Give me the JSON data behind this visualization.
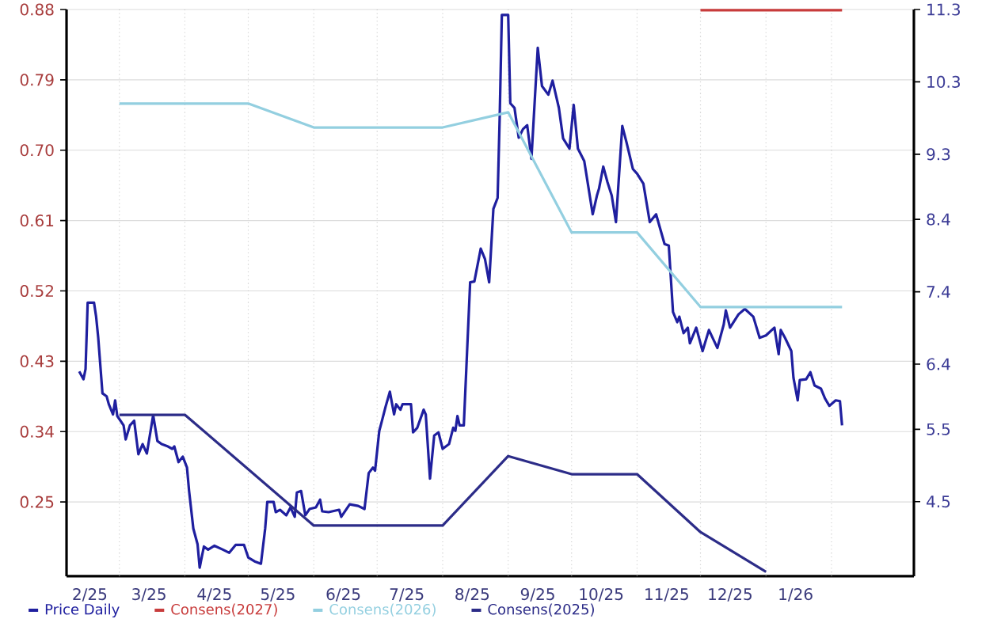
{
  "chart_data": {
    "type": "line",
    "series": [
      {
        "name": "Price Daily",
        "color": "#1f1f9f",
        "x": [
          "2025-02-10",
          "2025-02-12",
          "2025-02-13",
          "2025-02-14",
          "2025-02-17",
          "2025-02-18",
          "2025-02-19",
          "2025-02-21",
          "2025-02-23",
          "2025-02-24",
          "2025-02-26",
          "2025-02-27",
          "2025-02-28",
          "2025-03-03",
          "2025-03-04",
          "2025-03-06",
          "2025-03-08",
          "2025-03-10",
          "2025-03-12",
          "2025-03-14",
          "2025-03-17",
          "2025-03-19",
          "2025-03-21",
          "2025-03-24",
          "2025-03-26",
          "2025-03-27",
          "2025-03-29",
          "2025-03-31",
          "2025-04-02",
          "2025-04-03",
          "2025-04-05",
          "2025-04-07",
          "2025-04-08",
          "2025-04-10",
          "2025-04-12",
          "2025-04-15",
          "2025-04-19",
          "2025-04-22",
          "2025-04-25",
          "2025-04-29",
          "2025-05-01",
          "2025-05-04",
          "2025-05-07",
          "2025-05-09",
          "2025-05-10",
          "2025-05-13",
          "2025-05-14",
          "2025-05-16",
          "2025-05-19",
          "2025-05-21",
          "2025-05-23",
          "2025-05-24",
          "2025-05-26",
          "2025-05-28",
          "2025-05-30",
          "2025-06-02",
          "2025-06-04",
          "2025-06-05",
          "2025-06-08",
          "2025-06-13",
          "2025-06-14",
          "2025-06-18",
          "2025-06-22",
          "2025-06-25",
          "2025-06-27",
          "2025-06-29",
          "2025-06-30",
          "2025-07-02",
          "2025-07-03",
          "2025-07-05",
          "2025-07-07",
          "2025-07-09",
          "2025-07-10",
          "2025-07-12",
          "2025-07-13",
          "2025-07-17",
          "2025-07-18",
          "2025-07-20",
          "2025-07-23",
          "2025-07-24",
          "2025-07-26",
          "2025-07-28",
          "2025-07-30",
          "2025-08-01",
          "2025-08-04",
          "2025-08-06",
          "2025-08-07",
          "2025-08-08",
          "2025-08-09",
          "2025-08-11",
          "2025-08-14",
          "2025-08-16",
          "2025-08-19",
          "2025-08-21",
          "2025-08-23",
          "2025-08-25",
          "2025-08-27",
          "2025-08-28",
          "2025-08-29",
          "2025-09-01",
          "2025-09-02",
          "2025-09-04",
          "2025-09-06",
          "2025-09-08",
          "2025-09-10",
          "2025-09-12",
          "2025-09-15",
          "2025-09-17",
          "2025-09-20",
          "2025-09-22",
          "2025-09-25",
          "2025-09-27",
          "2025-09-30",
          "2025-10-02",
          "2025-10-04",
          "2025-10-07",
          "2025-10-08",
          "2025-10-11",
          "2025-10-13",
          "2025-10-14",
          "2025-10-16",
          "2025-10-18",
          "2025-10-20",
          "2025-10-22",
          "2025-10-25",
          "2025-10-27",
          "2025-10-30",
          "2025-11-01",
          "2025-11-04",
          "2025-11-07",
          "2025-11-10",
          "2025-11-14",
          "2025-11-16",
          "2025-11-18",
          "2025-11-20",
          "2025-11-21",
          "2025-11-23",
          "2025-11-25",
          "2025-11-26",
          "2025-11-29",
          "2025-12-02",
          "2025-12-05",
          "2025-12-09",
          "2025-12-12",
          "2025-12-13",
          "2025-12-15",
          "2025-12-19",
          "2025-12-22",
          "2025-12-26",
          "2025-12-29",
          "2026-01-01",
          "2026-01-05",
          "2026-01-07",
          "2026-01-08",
          "2026-01-10",
          "2026-01-13",
          "2026-01-14",
          "2026-01-16",
          "2026-01-17",
          "2026-01-20",
          "2026-01-22",
          "2026-01-24",
          "2026-01-27",
          "2026-01-29",
          "2026-01-31",
          "2026-02-03",
          "2026-02-05",
          "2026-02-06"
        ],
        "values": [
          0.417,
          0.407,
          0.42,
          0.505,
          0.505,
          0.487,
          0.46,
          0.389,
          0.385,
          0.375,
          0.362,
          0.38,
          0.36,
          0.348,
          0.33,
          0.348,
          0.354,
          0.311,
          0.324,
          0.312,
          0.361,
          0.328,
          0.324,
          0.321,
          0.318,
          0.321,
          0.301,
          0.308,
          0.294,
          0.264,
          0.216,
          0.196,
          0.166,
          0.193,
          0.189,
          0.194,
          0.189,
          0.185,
          0.195,
          0.195,
          0.179,
          0.174,
          0.171,
          0.216,
          0.25,
          0.25,
          0.237,
          0.24,
          0.233,
          0.243,
          0.231,
          0.262,
          0.264,
          0.233,
          0.241,
          0.243,
          0.253,
          0.238,
          0.237,
          0.24,
          0.231,
          0.247,
          0.245,
          0.241,
          0.287,
          0.294,
          0.29,
          0.341,
          0.351,
          0.372,
          0.391,
          0.362,
          0.375,
          0.368,
          0.375,
          0.375,
          0.339,
          0.345,
          0.368,
          0.362,
          0.28,
          0.335,
          0.339,
          0.318,
          0.324,
          0.345,
          0.341,
          0.36,
          0.348,
          0.348,
          0.531,
          0.532,
          0.574,
          0.561,
          0.531,
          0.625,
          0.639,
          0.744,
          0.873,
          0.873,
          0.76,
          0.754,
          0.716,
          0.727,
          0.732,
          0.689,
          0.831,
          0.782,
          0.771,
          0.789,
          0.754,
          0.715,
          0.702,
          0.758,
          0.702,
          0.686,
          0.669,
          0.618,
          0.642,
          0.651,
          0.679,
          0.659,
          0.642,
          0.608,
          0.731,
          0.71,
          0.676,
          0.67,
          0.657,
          0.608,
          0.618,
          0.58,
          0.578,
          0.493,
          0.48,
          0.487,
          0.466,
          0.473,
          0.453,
          0.473,
          0.443,
          0.47,
          0.447,
          0.477,
          0.495,
          0.473,
          0.49,
          0.497,
          0.487,
          0.46,
          0.463,
          0.473,
          0.439,
          0.47,
          0.46,
          0.443,
          0.409,
          0.38,
          0.406,
          0.407,
          0.416,
          0.399,
          0.395,
          0.382,
          0.373,
          0.38,
          0.379,
          0.348
        ]
      },
      {
        "name": "Consens(2027)",
        "color": "#c83c3c",
        "axis": "y2",
        "x": [
          "2025-12-01",
          "2026-02-06"
        ],
        "values": [
          11.29,
          11.29
        ]
      },
      {
        "name": "Consens(2026)",
        "color": "#93cfe0",
        "axis": "y2",
        "x": [
          "2025-03-01",
          "2025-05-01",
          "2025-06-01",
          "2025-08-01",
          "2025-09-01",
          "2025-10-01",
          "2025-11-01",
          "2025-12-01",
          "2026-02-06"
        ],
        "values": [
          10.0,
          10.0,
          9.67,
          9.67,
          9.88,
          8.22,
          8.22,
          7.19,
          7.19
        ]
      },
      {
        "name": "Consens(2025)",
        "color": "#2c2c88",
        "axis": "y2",
        "x": [
          "2025-03-01",
          "2025-04-01",
          "2025-06-01",
          "2025-08-01",
          "2025-09-01",
          "2025-10-01",
          "2025-11-01",
          "2025-12-01",
          "2026-01-01"
        ],
        "values": [
          5.7,
          5.7,
          4.17,
          4.17,
          5.13,
          4.88,
          4.88,
          4.08,
          3.53
        ]
      }
    ],
    "xlim": [
      "2025-02-04",
      "2026-03-12"
    ],
    "xticks": [
      {
        "value": "2025-02-15",
        "label": "2/25"
      },
      {
        "value": "2025-03-01",
        "label": null
      },
      {
        "value": "2025-03-15",
        "label": "3/25"
      },
      {
        "value": "2025-04-01",
        "label": null
      },
      {
        "value": "2025-04-15",
        "label": "4/25"
      },
      {
        "value": "2025-05-01",
        "label": null
      },
      {
        "value": "2025-05-15",
        "label": "5/25"
      },
      {
        "value": "2025-06-01",
        "label": null
      },
      {
        "value": "2025-06-15",
        "label": "6/25"
      },
      {
        "value": "2025-07-01",
        "label": null
      },
      {
        "value": "2025-07-15",
        "label": "7/25"
      },
      {
        "value": "2025-08-01",
        "label": null
      },
      {
        "value": "2025-08-15",
        "label": "8/25"
      },
      {
        "value": "2025-09-01",
        "label": null
      },
      {
        "value": "2025-09-15",
        "label": "9/25"
      },
      {
        "value": "2025-10-01",
        "label": null
      },
      {
        "value": "2025-10-15",
        "label": "10/25"
      },
      {
        "value": "2025-11-01",
        "label": null
      },
      {
        "value": "2025-11-15",
        "label": "11/25"
      },
      {
        "value": "2025-12-01",
        "label": null
      },
      {
        "value": "2025-12-15",
        "label": "12/25"
      },
      {
        "value": "2026-01-01",
        "label": null
      },
      {
        "value": "2026-01-15",
        "label": "1/26"
      },
      {
        "value": "2026-02-01",
        "label": null
      }
    ],
    "ylim": [
      0.155,
      0.88
    ],
    "yticks": [
      0.25,
      0.34,
      0.43,
      0.52,
      0.61,
      {
        "value": 0.7,
        "label": "0.70"
      },
      0.79,
      0.88
    ],
    "y2lim": [
      3.47,
      11.3
    ],
    "y2ticks": [
      4.5,
      5.5,
      6.4,
      7.4,
      8.4,
      9.3,
      10.3,
      11.3
    ],
    "grid": true,
    "legend": "bottom left"
  }
}
